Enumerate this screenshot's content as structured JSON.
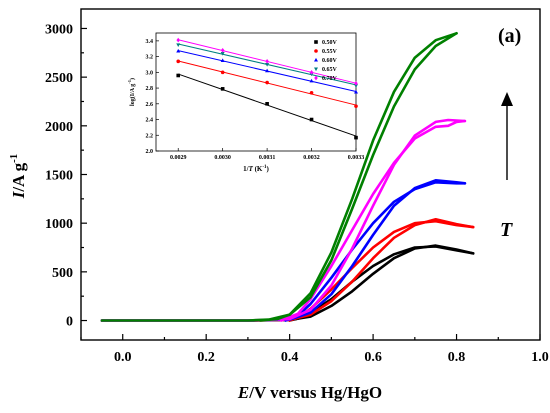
{
  "panel_label": "(a)",
  "arrow_label": "T",
  "chart_data": [
    {
      "type": "line",
      "xlabel_prefix": "E",
      "xlabel_suffix": "/V versus Hg/HgO",
      "ylabel_prefix": "I",
      "ylabel_suffix": "/A g",
      "ylabel_exponent": "-1",
      "xlim": [
        -0.1,
        1.0
      ],
      "ylim": [
        -200,
        3200
      ],
      "xticks": [
        -0.1,
        0.0,
        0.1,
        0.2,
        0.3,
        0.4,
        0.5,
        0.6,
        0.7,
        0.8,
        0.9,
        1.0
      ],
      "xtick_labels": [
        "0.0",
        "0.2",
        "0.4",
        "0.6",
        "0.8",
        "1.0"
      ],
      "xtick_label_values": [
        0.0,
        0.2,
        0.4,
        0.6,
        0.8,
        1.0
      ],
      "yticks": [
        0,
        500,
        1000,
        1500,
        2000,
        2500,
        3000
      ],
      "ytick_labels": [
        "0",
        "500",
        "1000",
        "1500",
        "2000",
        "2500",
        "3000"
      ],
      "series": [
        {
          "color": "#000000",
          "forward": {
            "x": [
              -0.05,
              0.3,
              0.4,
              0.45,
              0.5,
              0.55,
              0.6,
              0.65,
              0.7,
              0.75,
              0.8,
              0.84
            ],
            "y": [
              0,
              0,
              5,
              40,
              150,
              300,
              480,
              640,
              740,
              770,
              730,
              690
            ]
          },
          "reverse": {
            "x": [
              0.84,
              0.8,
              0.75,
              0.7,
              0.65,
              0.6,
              0.55,
              0.5,
              0.45,
              0.42,
              0.4
            ],
            "y": [
              690,
              720,
              760,
              750,
              680,
              560,
              400,
              220,
              80,
              20,
              0
            ]
          }
        },
        {
          "color": "#ff0000",
          "forward": {
            "x": [
              -0.05,
              0.3,
              0.4,
              0.45,
              0.5,
              0.55,
              0.6,
              0.65,
              0.7,
              0.75,
              0.8,
              0.84
            ],
            "y": [
              0,
              0,
              8,
              60,
              200,
              400,
              640,
              850,
              980,
              1040,
              990,
              960
            ]
          },
          "reverse": {
            "x": [
              0.84,
              0.8,
              0.75,
              0.7,
              0.65,
              0.6,
              0.55,
              0.5,
              0.45,
              0.42,
              0.4
            ],
            "y": [
              960,
              980,
              1020,
              1000,
              910,
              750,
              540,
              320,
              120,
              30,
              0
            ]
          }
        },
        {
          "color": "#0000ff",
          "forward": {
            "x": [
              -0.05,
              0.3,
              0.4,
              0.45,
              0.5,
              0.55,
              0.6,
              0.65,
              0.7,
              0.75,
              0.8,
              0.82
            ],
            "y": [
              0,
              0,
              10,
              80,
              270,
              560,
              880,
              1180,
              1360,
              1440,
              1420,
              1410
            ]
          },
          "reverse": {
            "x": [
              0.82,
              0.8,
              0.75,
              0.7,
              0.65,
              0.6,
              0.55,
              0.5,
              0.45,
              0.42,
              0.39
            ],
            "y": [
              1410,
              1410,
              1420,
              1350,
              1220,
              1000,
              730,
              440,
              170,
              50,
              0
            ]
          }
        },
        {
          "color": "#ff00ff",
          "forward": {
            "x": [
              -0.05,
              0.3,
              0.4,
              0.45,
              0.5,
              0.55,
              0.6,
              0.65,
              0.7,
              0.75,
              0.78,
              0.82
            ],
            "y": [
              0,
              0,
              15,
              110,
              360,
              740,
              1180,
              1600,
              1900,
              2040,
              2060,
              2050
            ]
          },
          "reverse": {
            "x": [
              0.82,
              0.8,
              0.78,
              0.75,
              0.7,
              0.65,
              0.6,
              0.55,
              0.5,
              0.45,
              0.42,
              0.38
            ],
            "y": [
              2050,
              2040,
              2000,
              1990,
              1870,
              1620,
              1300,
              930,
              560,
              220,
              70,
              0
            ]
          }
        },
        {
          "color": "#008000",
          "forward": {
            "x": [
              -0.05,
              0.3,
              0.35,
              0.4,
              0.45,
              0.5,
              0.55,
              0.6,
              0.65,
              0.7,
              0.75,
              0.8
            ],
            "y": [
              0,
              0,
              10,
              60,
              280,
              700,
              1250,
              1850,
              2350,
              2700,
              2880,
              2950
            ]
          },
          "reverse": {
            "x": [
              0.8,
              0.75,
              0.7,
              0.65,
              0.6,
              0.55,
              0.5,
              0.45,
              0.4,
              0.37,
              0.33
            ],
            "y": [
              2950,
              2820,
              2580,
              2200,
              1700,
              1150,
              620,
              240,
              60,
              15,
              0
            ]
          }
        }
      ]
    },
    {
      "type": "scatter",
      "xlabel_prefix": "1/",
      "xlabel_var": "T",
      "xlabel_suffix": " (K",
      "xlabel_exponent": "-1",
      "xlabel_close": ")",
      "ylabel": "log(I/A g",
      "ylabel_exponent": "-1",
      "ylabel_close": ")",
      "xlim": [
        0.00285,
        0.0033
      ],
      "ylim": [
        2.0,
        3.5
      ],
      "xticks": [
        0.0029,
        0.003,
        0.0031,
        0.0032,
        0.0033
      ],
      "xtick_labels": [
        "0.0029",
        "0.0030",
        "0.0031",
        "0.0032",
        "0.0033"
      ],
      "yticks": [
        2.0,
        2.2,
        2.4,
        2.6,
        2.8,
        3.0,
        3.2,
        3.4
      ],
      "ytick_labels": [
        "2.0",
        "2.2",
        "2.4",
        "2.6",
        "2.8",
        "3.0",
        "3.2",
        "3.4"
      ],
      "legend": "right",
      "series": [
        {
          "name": "0.50V",
          "color": "#000000",
          "marker": "square",
          "x": [
            0.0029,
            0.003,
            0.0031,
            0.0032,
            0.0033
          ],
          "y": [
            2.96,
            2.79,
            2.6,
            2.4,
            2.17
          ]
        },
        {
          "name": "0.55V",
          "color": "#ff0000",
          "marker": "circle",
          "x": [
            0.0029,
            0.003,
            0.0031,
            0.0032,
            0.0033
          ],
          "y": [
            3.14,
            3.0,
            2.87,
            2.74,
            2.57
          ]
        },
        {
          "name": "0.60V",
          "color": "#0000ff",
          "marker": "triangle-up",
          "x": [
            0.0029,
            0.003,
            0.0031,
            0.0032,
            0.0033
          ],
          "y": [
            3.27,
            3.15,
            3.02,
            2.89,
            2.75
          ]
        },
        {
          "name": "0.65V",
          "color": "#008080",
          "marker": "triangle-down",
          "x": [
            0.0029,
            0.003,
            0.0031,
            0.0032,
            0.0033
          ],
          "y": [
            3.35,
            3.24,
            3.1,
            2.98,
            2.83
          ]
        },
        {
          "name": "0.70V",
          "color": "#ff00ff",
          "marker": "diamond",
          "x": [
            0.0029,
            0.003,
            0.0031,
            0.0032,
            0.0033
          ],
          "y": [
            3.41,
            3.28,
            3.14,
            3.0,
            2.86
          ]
        }
      ]
    }
  ]
}
